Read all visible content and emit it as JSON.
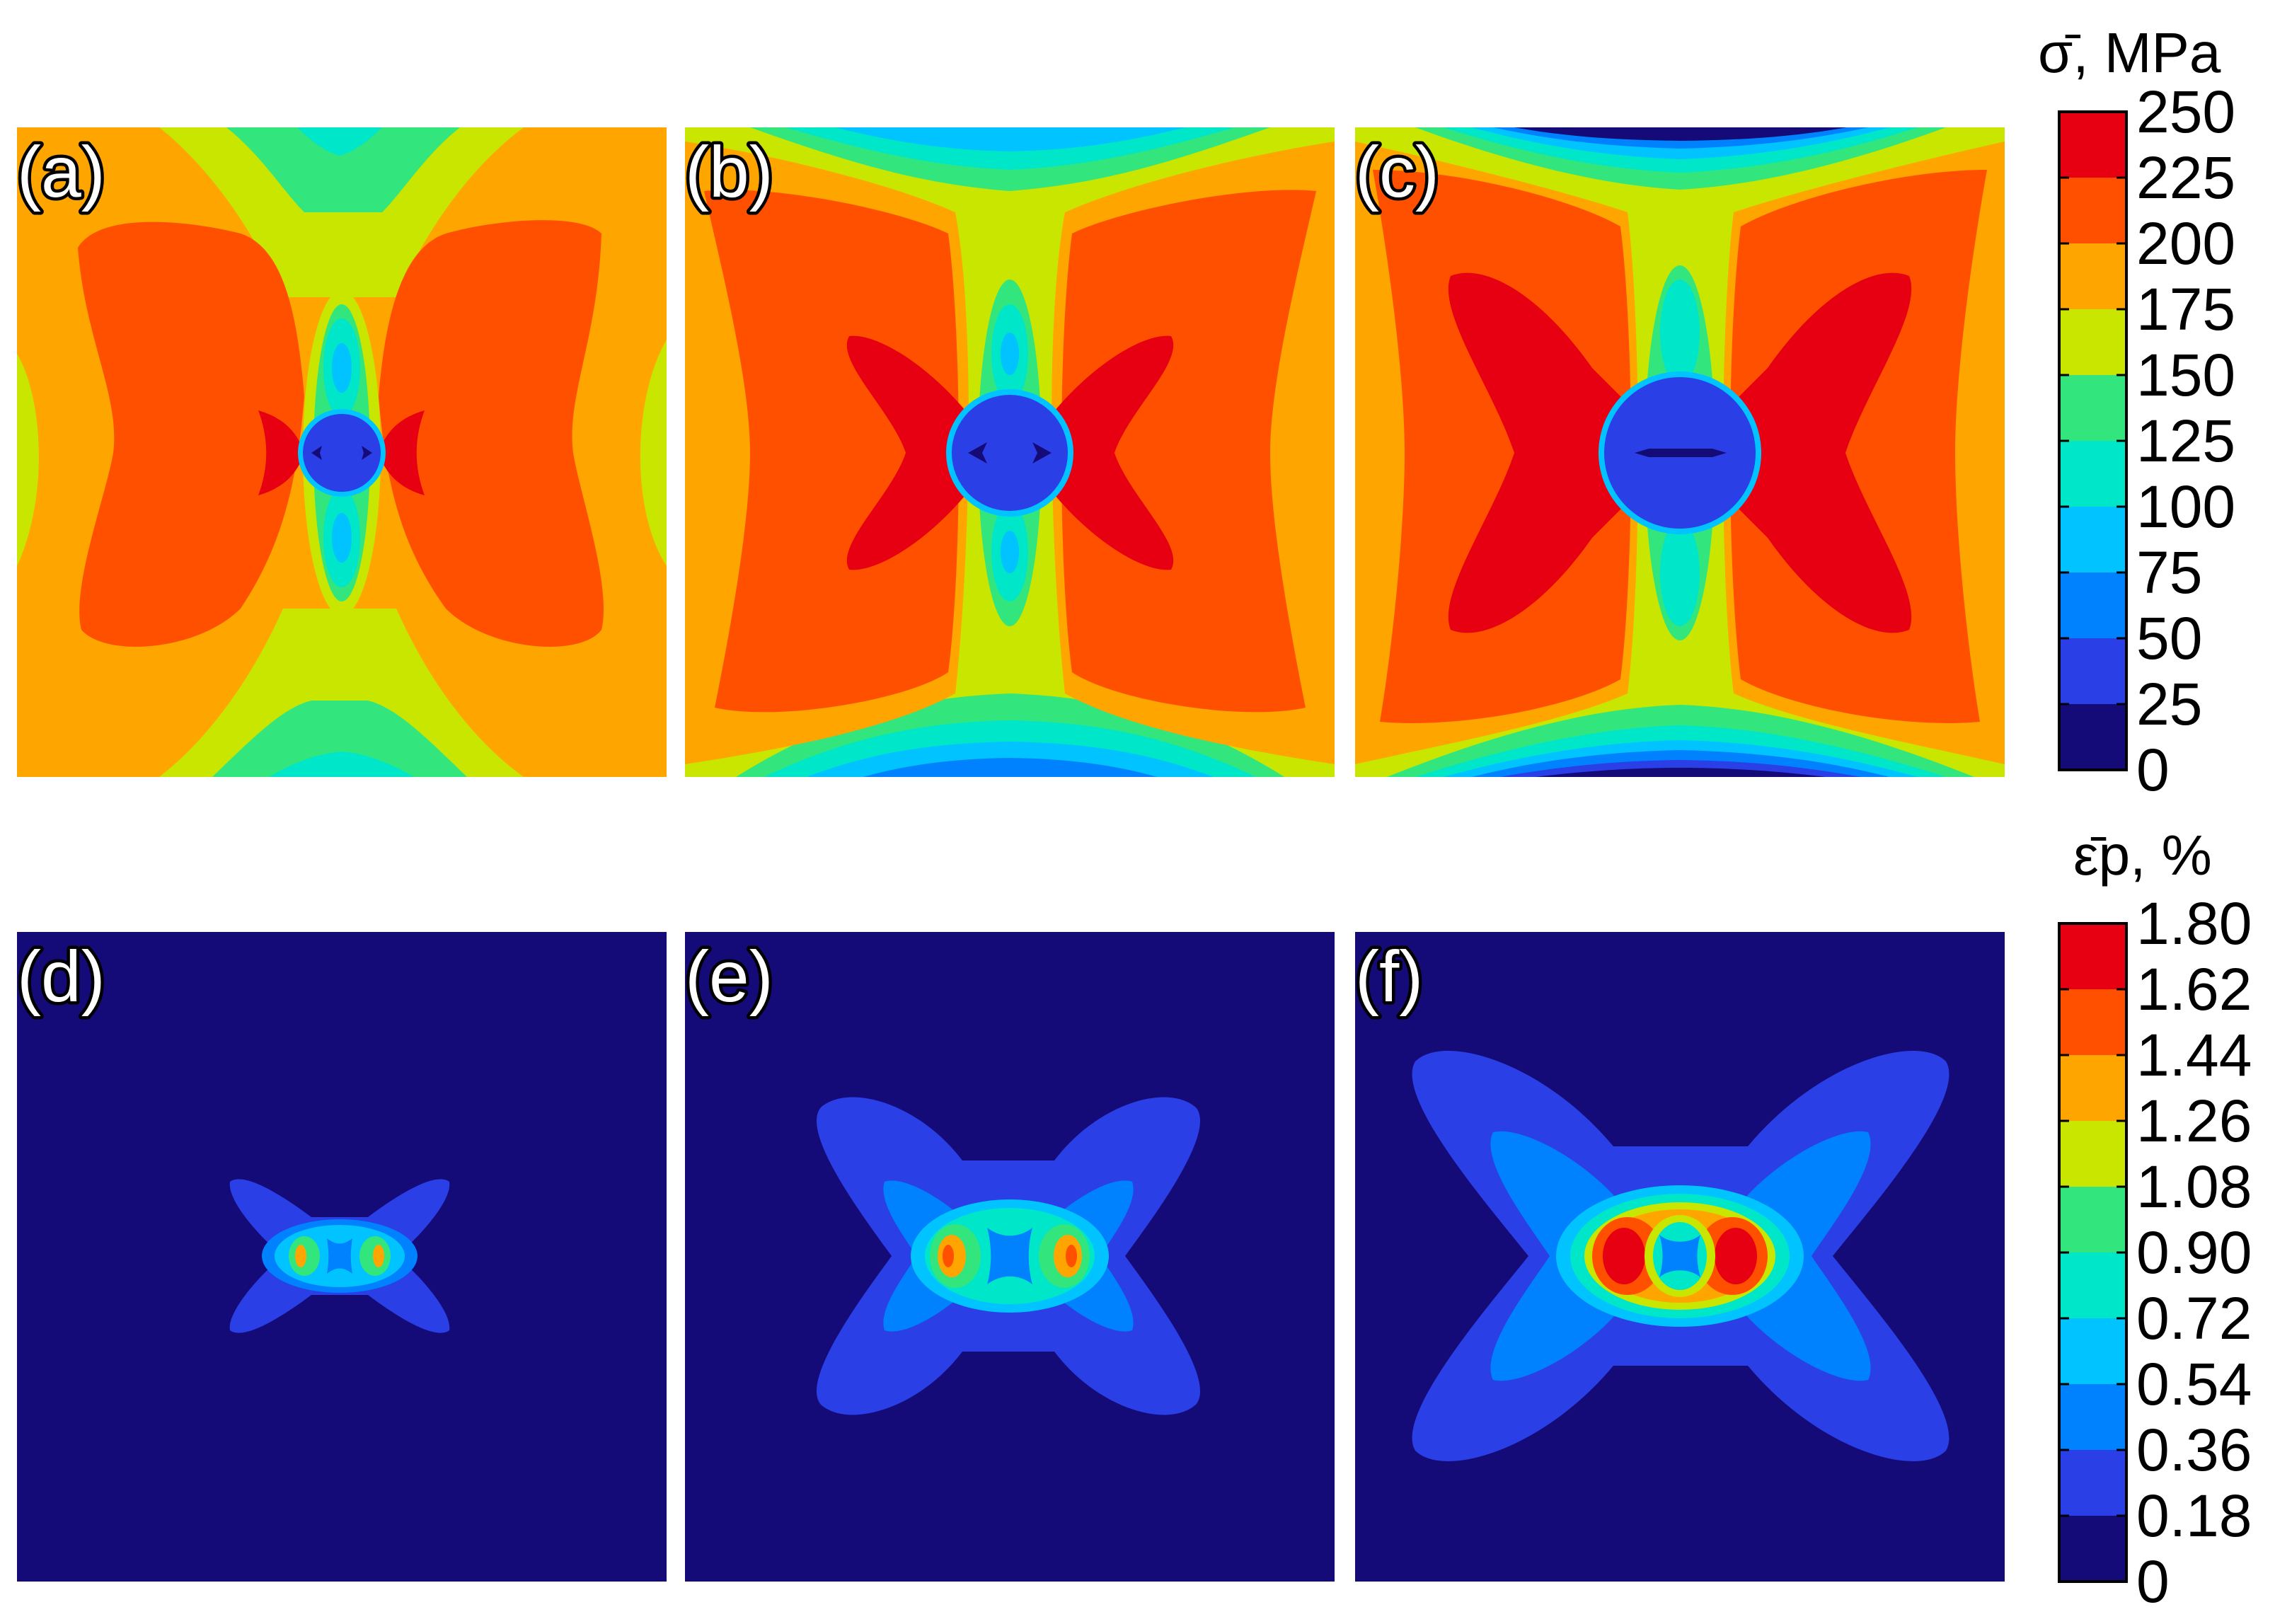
{
  "panels": {
    "top": [
      "(a)",
      "(b)",
      "(c)"
    ],
    "bottom": [
      "(d)",
      "(e)",
      "(f)"
    ]
  },
  "stress_colorbar": {
    "title": "σ̄, MPa",
    "ticks": [
      "250",
      "225",
      "200",
      "175",
      "150",
      "125",
      "100",
      "75",
      "50",
      "25",
      "0"
    ],
    "colors": [
      "#e60012",
      "#ff5000",
      "#ffa500",
      "#c8e600",
      "#32e67d",
      "#00e6c8",
      "#00c3ff",
      "#0082ff",
      "#2a3fe6",
      "#140a78"
    ]
  },
  "strain_colorbar": {
    "title": "ε̄p, %",
    "ticks": [
      "1.80",
      "1.62",
      "1.44",
      "1.26",
      "1.08",
      "0.90",
      "0.72",
      "0.54",
      "0.36",
      "0.18",
      "0"
    ],
    "colors": [
      "#e60012",
      "#ff5000",
      "#ffa500",
      "#c8e600",
      "#32e67d",
      "#00e6c8",
      "#00c3ff",
      "#0082ff",
      "#2a3fe6",
      "#140a78"
    ]
  },
  "palette": {
    "red": "#e60012",
    "orange_red": "#ff5000",
    "orange": "#ffa500",
    "yellow_green": "#c8e600",
    "green": "#32e67d",
    "teal": "#00e6c8",
    "cyan": "#00c3ff",
    "blue": "#0082ff",
    "mid_blue": "#2a3fe6",
    "navy": "#140a78"
  }
}
